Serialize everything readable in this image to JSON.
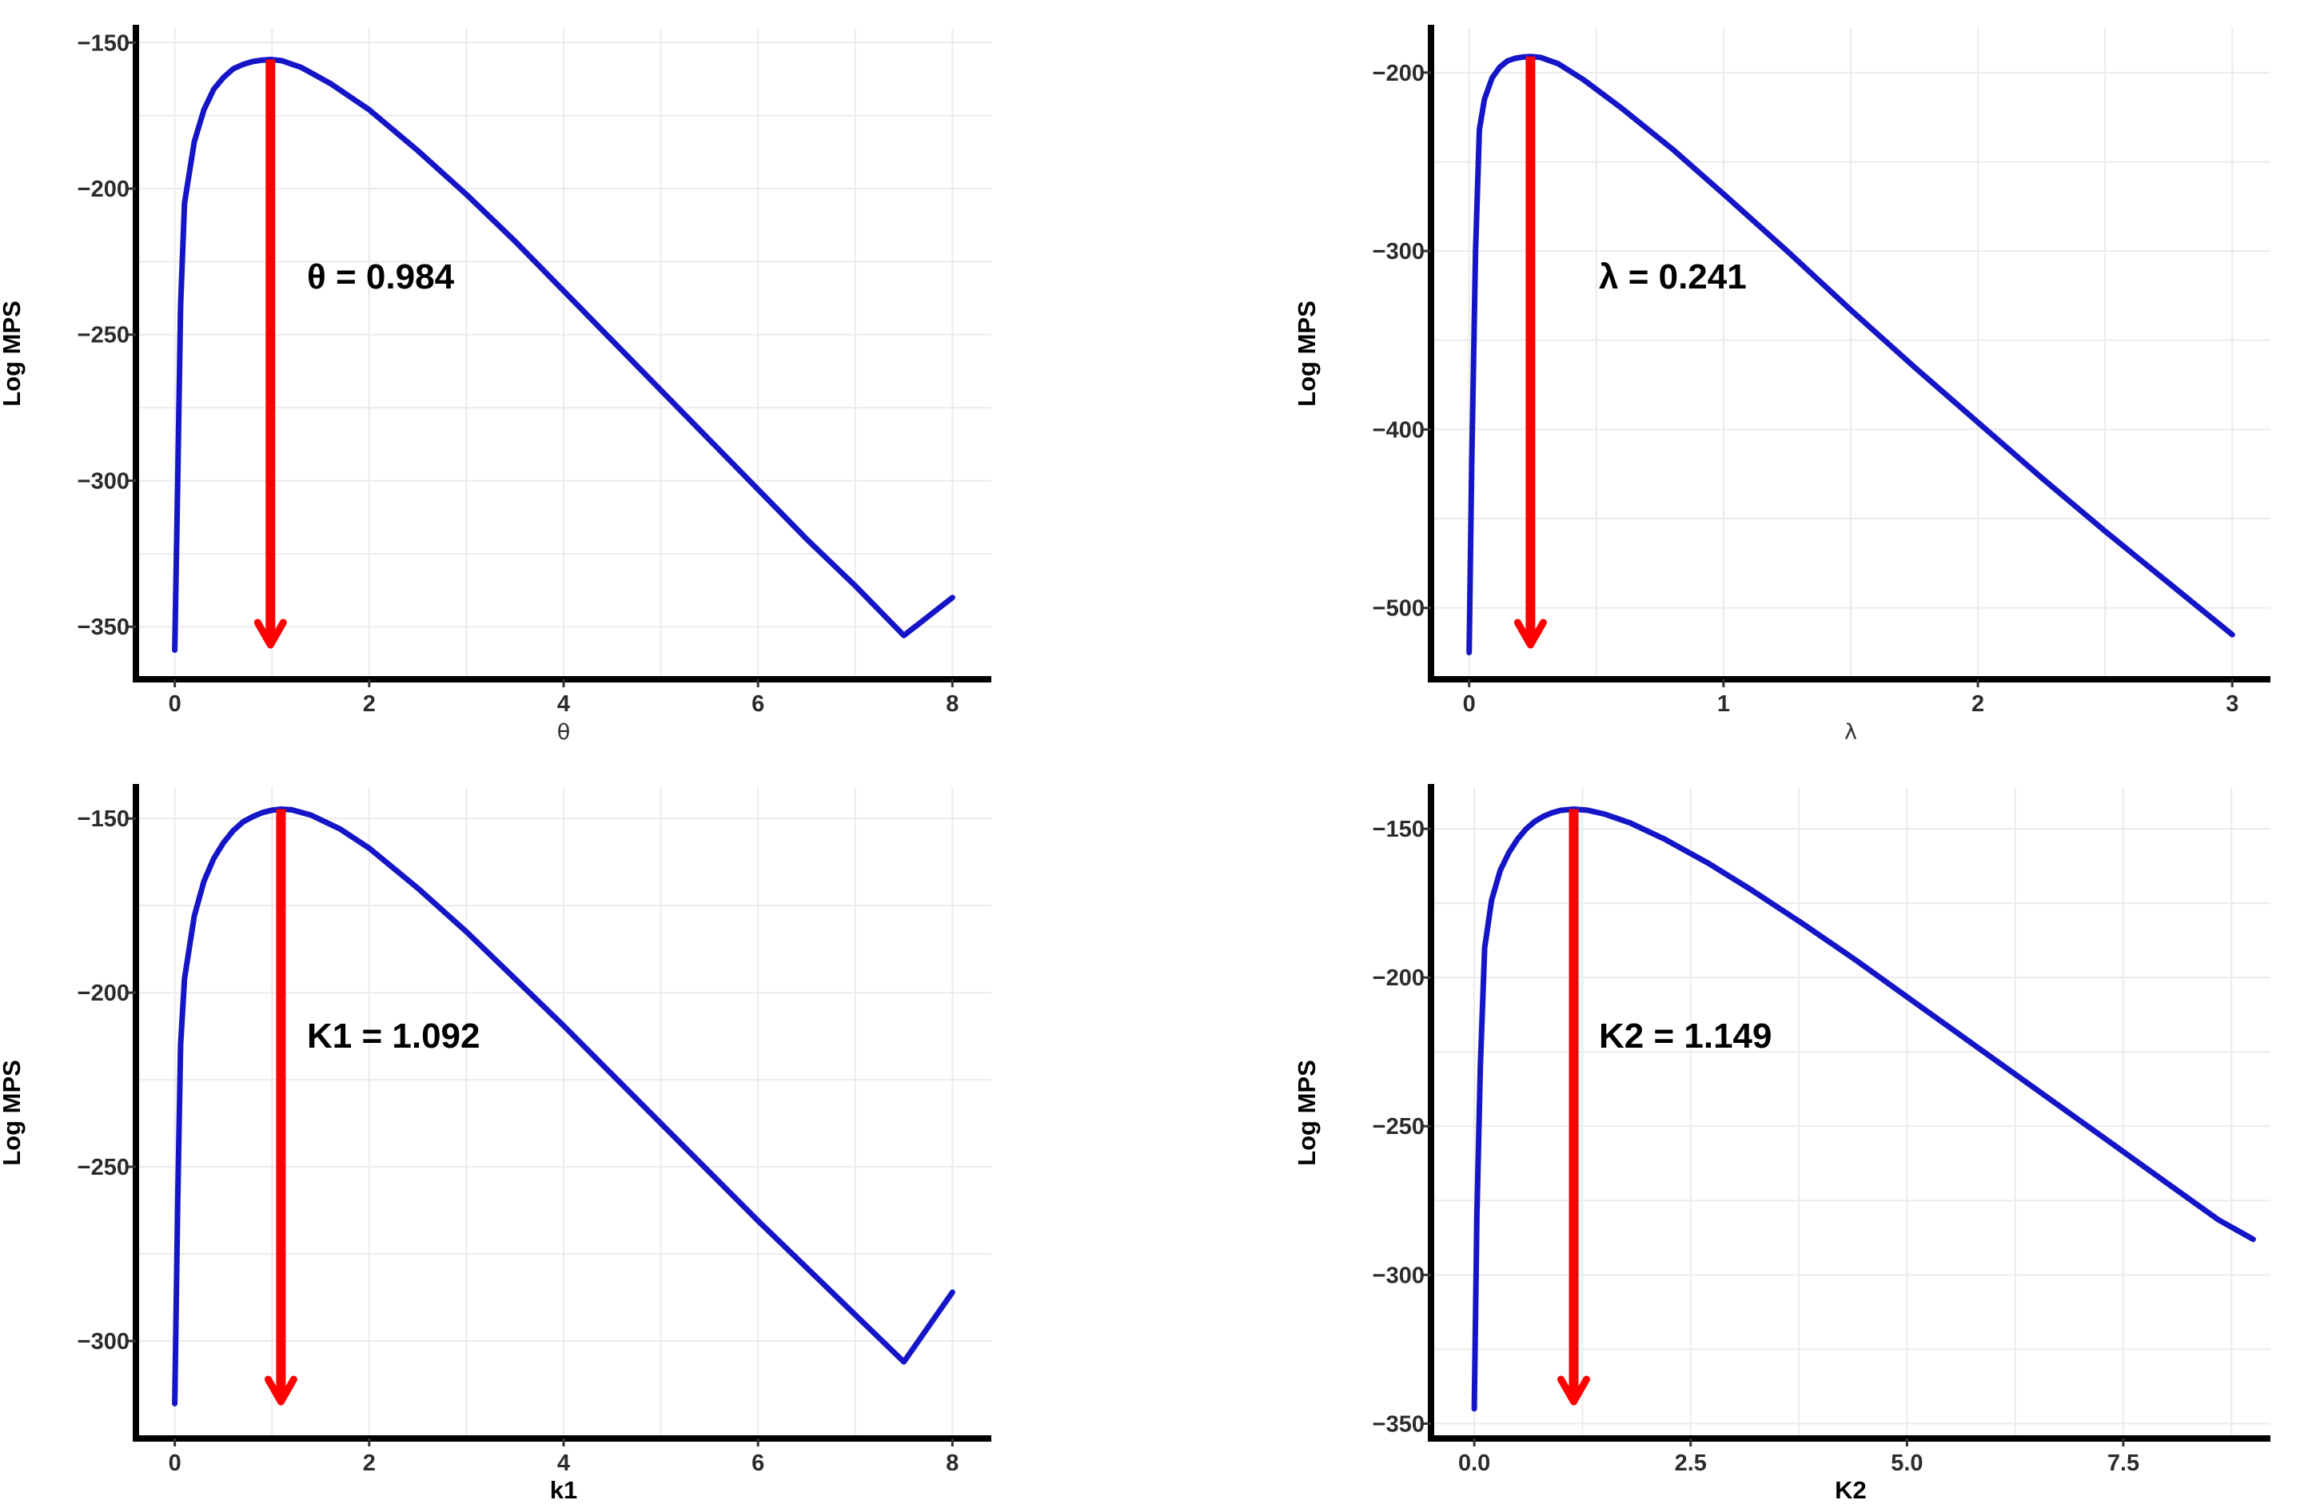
{
  "chart_data": [
    {
      "type": "line",
      "xlabel": "θ",
      "ylabel": "Log MPS",
      "xlim": [
        -0.4,
        8.4
      ],
      "ylim": [
        -368,
        -145
      ],
      "xticks": [
        0,
        2,
        4,
        6,
        8
      ],
      "xtick_labels": [
        "0",
        "2",
        "4",
        "6",
        "8"
      ],
      "yticks": [
        -350,
        -300,
        -250,
        -200,
        -150
      ],
      "ytick_labels": [
        "−350",
        "−300",
        "−250",
        "−200",
        "−150"
      ],
      "estimate": 0.984,
      "annotation": "θ = 0.984",
      "series": [
        {
          "x": [
            0.0,
            0.03,
            0.06,
            0.1,
            0.2,
            0.3,
            0.4,
            0.5,
            0.6,
            0.7,
            0.8,
            0.9,
            0.984,
            1.1,
            1.3,
            1.6,
            2.0,
            2.5,
            3.0,
            3.5,
            4.0,
            4.5,
            5.0,
            5.5,
            6.0,
            6.5,
            7.0,
            7.5,
            8.0
          ],
          "y": [
            -358,
            -300,
            -240,
            -205,
            -184,
            -173,
            -166,
            -162,
            -159,
            -157.5,
            -156.5,
            -156,
            -155.8,
            -156.2,
            -158.5,
            -164,
            -173,
            -187,
            -202,
            -218,
            -235,
            -252,
            -269,
            -286,
            -303,
            -320,
            -336,
            -353,
            -340
          ]
        }
      ]
    },
    {
      "type": "line",
      "xlabel": "λ",
      "ylabel": "Log MPS",
      "xlim": [
        -0.15,
        3.15
      ],
      "ylim": [
        -540,
        -175
      ],
      "xticks": [
        0,
        1,
        2,
        3
      ],
      "xtick_labels": [
        "0",
        "1",
        "2",
        "3"
      ],
      "yticks": [
        -500,
        -400,
        -300,
        -200
      ],
      "ytick_labels": [
        "−500",
        "−400",
        "−300",
        "−200"
      ],
      "estimate": 0.241,
      "annotation": "λ = 0.241",
      "series": [
        {
          "x": [
            0.0,
            0.01,
            0.025,
            0.04,
            0.06,
            0.09,
            0.12,
            0.15,
            0.18,
            0.21,
            0.241,
            0.28,
            0.35,
            0.45,
            0.6,
            0.8,
            1.0,
            1.25,
            1.5,
            1.75,
            2.0,
            2.25,
            2.5,
            2.75,
            3.0
          ],
          "y": [
            -525,
            -420,
            -300,
            -232,
            -215,
            -203,
            -197,
            -193.5,
            -192,
            -191.3,
            -191,
            -191.5,
            -195,
            -204,
            -220,
            -243,
            -268,
            -300,
            -333,
            -365,
            -396,
            -427,
            -457,
            -486,
            -515
          ]
        }
      ]
    },
    {
      "type": "line",
      "xlabel": "k1",
      "ylabel": "Log MPS",
      "xlim": [
        -0.4,
        8.4
      ],
      "ylim": [
        -328,
        -141
      ],
      "xticks": [
        0,
        2,
        4,
        6,
        8
      ],
      "xtick_labels": [
        "0",
        "2",
        "4",
        "6",
        "8"
      ],
      "yticks": [
        -300,
        -250,
        -200,
        -150
      ],
      "ytick_labels": [
        "−300",
        "−250",
        "−200",
        "−150"
      ],
      "estimate": 1.092,
      "annotation": "K1 = 1.092",
      "series": [
        {
          "x": [
            0.0,
            0.03,
            0.06,
            0.1,
            0.2,
            0.3,
            0.4,
            0.5,
            0.6,
            0.7,
            0.8,
            0.9,
            1.0,
            1.092,
            1.2,
            1.4,
            1.7,
            2.0,
            2.5,
            3.0,
            3.5,
            4.0,
            4.5,
            5.0,
            5.5,
            6.0,
            6.5,
            7.0,
            7.5,
            8.0
          ],
          "y": [
            -318,
            -260,
            -215,
            -196,
            -178,
            -168,
            -161.5,
            -157,
            -153.5,
            -151,
            -149.5,
            -148.3,
            -147.6,
            -147.3,
            -147.5,
            -149,
            -153,
            -158.5,
            -170,
            -182.5,
            -196,
            -209.5,
            -223.5,
            -237.5,
            -251.5,
            -265.5,
            -279,
            -292.5,
            -306,
            -286
          ]
        }
      ]
    },
    {
      "type": "line",
      "xlabel": "K2",
      "ylabel": "Log MPS",
      "xlim": [
        -0.5,
        9.2
      ],
      "ylim": [
        -355,
        -136
      ],
      "xticks": [
        0,
        2.5,
        5,
        7.5
      ],
      "xtick_labels": [
        "0.0",
        "2.5",
        "5.0",
        "7.5"
      ],
      "yticks": [
        -350,
        -300,
        -250,
        -200,
        -150
      ],
      "ytick_labels": [
        "−350",
        "−300",
        "−250",
        "−200",
        "−150"
      ],
      "estimate": 1.149,
      "annotation": "K2 = 1.149",
      "series": [
        {
          "x": [
            0.0,
            0.03,
            0.07,
            0.12,
            0.2,
            0.3,
            0.4,
            0.5,
            0.6,
            0.7,
            0.8,
            0.9,
            1.0,
            1.149,
            1.3,
            1.5,
            1.8,
            2.2,
            2.7,
            3.2,
            3.8,
            4.4,
            5.0,
            5.6,
            6.2,
            6.8,
            7.4,
            8.0,
            8.6,
            9.0
          ],
          "y": [
            -345,
            -280,
            -230,
            -190,
            -174,
            -164,
            -158,
            -153.5,
            -150,
            -147.5,
            -145.8,
            -144.6,
            -143.8,
            -143.4,
            -143.7,
            -145,
            -148,
            -153.5,
            -161.5,
            -170.5,
            -182,
            -194,
            -206.5,
            -219,
            -231.5,
            -244,
            -256.5,
            -269,
            -281.5,
            -288
          ]
        }
      ]
    }
  ]
}
